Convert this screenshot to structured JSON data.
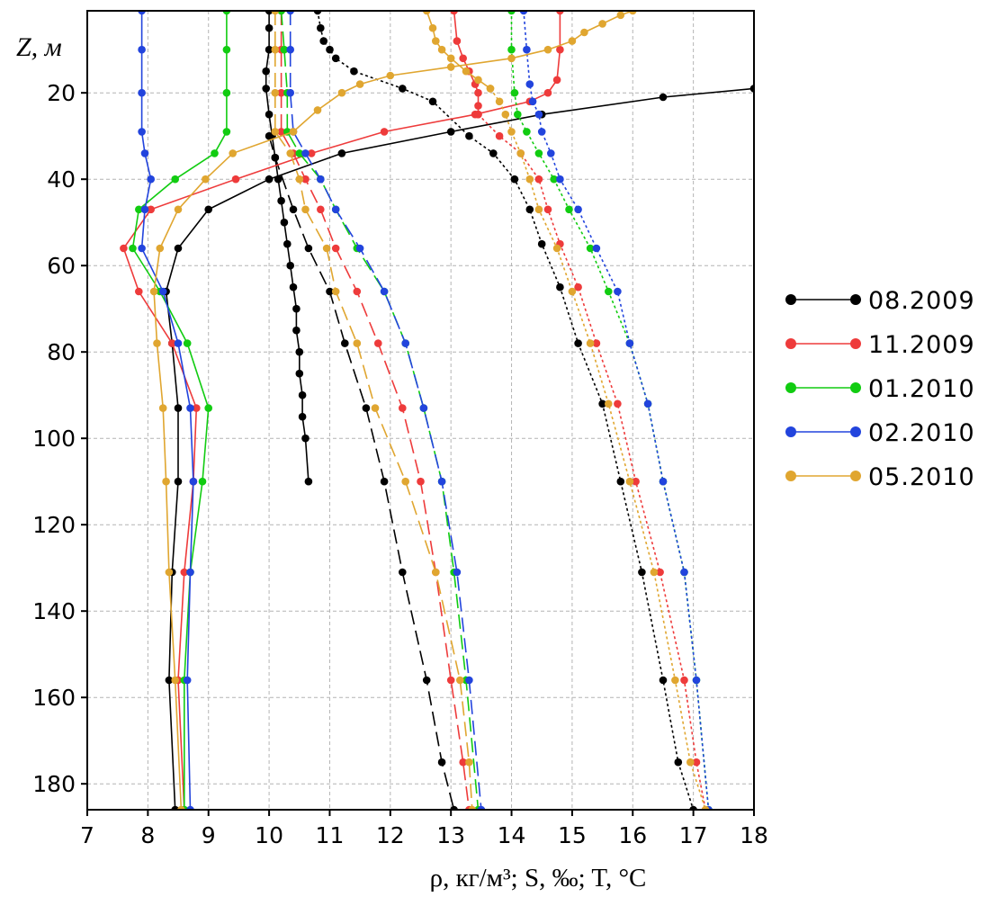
{
  "chart_data": {
    "type": "line",
    "xlabel": "ρ, кг/м³; S, ‰; T, °C",
    "ylabel": "Z, м",
    "xlim": [
      7,
      18
    ],
    "ylim": [
      186,
      1
    ],
    "x_ticks": [
      7,
      8,
      9,
      10,
      11,
      12,
      13,
      14,
      15,
      16,
      17,
      18
    ],
    "y_ticks": [
      20,
      40,
      60,
      80,
      100,
      120,
      140,
      160,
      180
    ],
    "grid": true,
    "legend_position": "right",
    "legend": [
      "08.2009",
      "11.2009",
      "01.2010",
      "02.2010",
      "05.2010"
    ],
    "colors": {
      "08.2009": "#000000",
      "11.2009": "#ee3b3b",
      "01.2010": "#11cc11",
      "02.2010": "#2244dd",
      "05.2010": "#e0a630"
    },
    "series": [
      {
        "name": "08.2009",
        "variable": "T",
        "dash": "solid",
        "points": [
          [
            10.0,
            1
          ],
          [
            10.0,
            5
          ],
          [
            10.0,
            10
          ],
          [
            9.95,
            15
          ],
          [
            9.95,
            19
          ],
          [
            10.0,
            25
          ],
          [
            10.05,
            30
          ],
          [
            10.1,
            35
          ],
          [
            10.15,
            40
          ],
          [
            10.2,
            45
          ],
          [
            10.25,
            50
          ],
          [
            10.3,
            55
          ],
          [
            10.35,
            60
          ],
          [
            10.4,
            65
          ],
          [
            10.45,
            70
          ],
          [
            10.45,
            75
          ],
          [
            10.5,
            80
          ],
          [
            10.5,
            85
          ],
          [
            10.55,
            90
          ],
          [
            10.55,
            95
          ],
          [
            10.6,
            100
          ],
          [
            10.65,
            110
          ]
        ]
      },
      {
        "name": "08.2009",
        "variable": "S",
        "dash": "dotted",
        "points": [
          [
            10.8,
            1
          ],
          [
            10.85,
            5
          ],
          [
            10.9,
            8
          ],
          [
            11.0,
            10
          ],
          [
            11.1,
            12
          ],
          [
            11.4,
            15
          ],
          [
            12.2,
            19
          ],
          [
            12.7,
            22
          ],
          [
            13.3,
            30
          ],
          [
            13.7,
            34
          ],
          [
            14.05,
            40
          ],
          [
            14.3,
            47
          ],
          [
            14.5,
            55
          ],
          [
            14.8,
            65
          ],
          [
            15.1,
            78
          ],
          [
            15.5,
            92
          ],
          [
            15.8,
            110
          ],
          [
            16.15,
            131
          ],
          [
            16.5,
            156
          ],
          [
            16.75,
            175
          ],
          [
            17.0,
            186
          ]
        ]
      },
      {
        "name": "08.2009",
        "variable": "ρ",
        "dash": "dashed",
        "points": [
          [
            10.0,
            30
          ],
          [
            10.1,
            35
          ],
          [
            10.4,
            47
          ],
          [
            10.65,
            56
          ],
          [
            11.0,
            66
          ],
          [
            11.25,
            78
          ],
          [
            11.6,
            93
          ],
          [
            11.9,
            110
          ],
          [
            12.2,
            131
          ],
          [
            12.6,
            156
          ],
          [
            12.85,
            175
          ],
          [
            13.05,
            186
          ]
        ]
      },
      {
        "name": "08.2009",
        "variable": "T",
        "dash": "solid",
        "points": [
          [
            18.0,
            19
          ],
          [
            16.5,
            21
          ],
          [
            14.5,
            25
          ],
          [
            13.0,
            29
          ],
          [
            11.2,
            34
          ],
          [
            10.0,
            40
          ],
          [
            9.0,
            47
          ],
          [
            8.5,
            56
          ],
          [
            8.3,
            66
          ],
          [
            8.4,
            78
          ],
          [
            8.5,
            93
          ],
          [
            8.5,
            110
          ],
          [
            8.4,
            131
          ],
          [
            8.35,
            156
          ],
          [
            8.45,
            186
          ]
        ]
      },
      {
        "name": "11.2009",
        "variable": "T",
        "dash": "solid",
        "points": [
          [
            14.8,
            1
          ],
          [
            14.8,
            10
          ],
          [
            14.75,
            17
          ],
          [
            14.6,
            20
          ],
          [
            14.3,
            22
          ],
          [
            13.4,
            25
          ],
          [
            11.9,
            29
          ],
          [
            10.7,
            34
          ],
          [
            9.45,
            40
          ],
          [
            8.05,
            47
          ],
          [
            7.6,
            56
          ],
          [
            7.85,
            66
          ],
          [
            8.4,
            78
          ],
          [
            8.8,
            93
          ],
          [
            8.75,
            110
          ],
          [
            8.6,
            131
          ],
          [
            8.5,
            156
          ],
          [
            8.6,
            186
          ]
        ]
      },
      {
        "name": "11.2009",
        "variable": "S",
        "dash": "solid",
        "points": [
          [
            13.05,
            1
          ],
          [
            13.1,
            8
          ],
          [
            13.2,
            12
          ],
          [
            13.3,
            15
          ],
          [
            13.4,
            18
          ],
          [
            13.45,
            20
          ],
          [
            13.45,
            23
          ],
          [
            13.45,
            25
          ]
        ]
      },
      {
        "name": "11.2009",
        "variable": "S",
        "dash": "dotted",
        "points": [
          [
            13.45,
            25
          ],
          [
            13.8,
            30
          ],
          [
            14.15,
            34
          ],
          [
            14.45,
            40
          ],
          [
            14.6,
            47
          ],
          [
            14.8,
            55
          ],
          [
            15.1,
            65
          ],
          [
            15.4,
            78
          ],
          [
            15.75,
            92
          ],
          [
            16.05,
            110
          ],
          [
            16.45,
            131
          ],
          [
            16.85,
            156
          ],
          [
            17.05,
            175
          ],
          [
            17.2,
            186
          ]
        ]
      },
      {
        "name": "11.2009",
        "variable": "ρ",
        "dash": "dashed",
        "points": [
          [
            10.2,
            1
          ],
          [
            10.2,
            10
          ],
          [
            10.2,
            20
          ],
          [
            10.2,
            29
          ],
          [
            10.4,
            34
          ],
          [
            10.6,
            40
          ],
          [
            10.85,
            47
          ],
          [
            11.1,
            56
          ],
          [
            11.45,
            66
          ],
          [
            11.8,
            78
          ],
          [
            12.2,
            93
          ],
          [
            12.5,
            110
          ],
          [
            12.75,
            131
          ],
          [
            13.0,
            156
          ],
          [
            13.2,
            175
          ],
          [
            13.3,
            186
          ]
        ]
      },
      {
        "name": "01.2010",
        "variable": "T",
        "dash": "solid",
        "points": [
          [
            9.3,
            1
          ],
          [
            9.3,
            10
          ],
          [
            9.3,
            20
          ],
          [
            9.3,
            29
          ],
          [
            9.1,
            34
          ],
          [
            8.45,
            40
          ],
          [
            7.85,
            47
          ],
          [
            7.75,
            56
          ],
          [
            8.2,
            66
          ],
          [
            8.65,
            78
          ],
          [
            9.0,
            93
          ],
          [
            8.9,
            110
          ],
          [
            8.7,
            131
          ],
          [
            8.6,
            156
          ],
          [
            8.6,
            186
          ]
        ]
      },
      {
        "name": "01.2010",
        "variable": "S",
        "dash": "dotted",
        "points": [
          [
            14.0,
            1
          ],
          [
            14.0,
            10
          ],
          [
            14.05,
            20
          ],
          [
            14.1,
            25
          ],
          [
            14.25,
            29
          ],
          [
            14.45,
            34
          ],
          [
            14.7,
            40
          ],
          [
            14.95,
            47
          ],
          [
            15.3,
            56
          ],
          [
            15.6,
            66
          ],
          [
            15.95,
            78
          ],
          [
            16.25,
            92
          ],
          [
            16.5,
            110
          ],
          [
            16.85,
            131
          ],
          [
            17.05,
            156
          ],
          [
            17.25,
            186
          ]
        ]
      },
      {
        "name": "01.2010",
        "variable": "ρ",
        "dash": "dashed",
        "points": [
          [
            10.2,
            1
          ],
          [
            10.25,
            10
          ],
          [
            10.3,
            20
          ],
          [
            10.3,
            29
          ],
          [
            10.5,
            34
          ],
          [
            10.85,
            40
          ],
          [
            11.1,
            47
          ],
          [
            11.45,
            56
          ],
          [
            11.9,
            66
          ],
          [
            12.25,
            78
          ],
          [
            12.55,
            93
          ],
          [
            12.85,
            110
          ],
          [
            13.05,
            131
          ],
          [
            13.25,
            156
          ],
          [
            13.45,
            186
          ]
        ]
      },
      {
        "name": "02.2010",
        "variable": "T",
        "dash": "solid",
        "points": [
          [
            7.9,
            1
          ],
          [
            7.9,
            10
          ],
          [
            7.9,
            20
          ],
          [
            7.9,
            29
          ],
          [
            7.95,
            34
          ],
          [
            8.05,
            40
          ],
          [
            7.95,
            47
          ],
          [
            7.9,
            56
          ],
          [
            8.25,
            66
          ],
          [
            8.5,
            78
          ],
          [
            8.7,
            93
          ],
          [
            8.75,
            110
          ],
          [
            8.7,
            131
          ],
          [
            8.65,
            156
          ],
          [
            8.7,
            186
          ]
        ]
      },
      {
        "name": "02.2010",
        "variable": "S",
        "dash": "dotted",
        "points": [
          [
            14.2,
            1
          ],
          [
            14.25,
            10
          ],
          [
            14.3,
            18
          ],
          [
            14.35,
            22
          ],
          [
            14.45,
            25
          ],
          [
            14.5,
            29
          ],
          [
            14.65,
            34
          ],
          [
            14.8,
            40
          ],
          [
            15.1,
            47
          ],
          [
            15.4,
            56
          ],
          [
            15.75,
            66
          ],
          [
            15.95,
            78
          ],
          [
            16.25,
            92
          ],
          [
            16.5,
            110
          ],
          [
            16.85,
            131
          ],
          [
            17.05,
            156
          ],
          [
            17.25,
            186
          ]
        ]
      },
      {
        "name": "02.2010",
        "variable": "ρ",
        "dash": "dashed",
        "points": [
          [
            10.35,
            1
          ],
          [
            10.35,
            10
          ],
          [
            10.35,
            20
          ],
          [
            10.4,
            29
          ],
          [
            10.6,
            34
          ],
          [
            10.85,
            40
          ],
          [
            11.1,
            47
          ],
          [
            11.5,
            56
          ],
          [
            11.9,
            66
          ],
          [
            12.25,
            78
          ],
          [
            12.55,
            93
          ],
          [
            12.85,
            110
          ],
          [
            13.1,
            131
          ],
          [
            13.3,
            156
          ],
          [
            13.5,
            186
          ]
        ]
      },
      {
        "name": "05.2010",
        "variable": "T",
        "dash": "solid",
        "points": [
          [
            16.0,
            1
          ],
          [
            15.8,
            2
          ],
          [
            15.5,
            4
          ],
          [
            15.2,
            6
          ],
          [
            15.0,
            8
          ],
          [
            14.6,
            10
          ],
          [
            14.0,
            12
          ],
          [
            13.0,
            14
          ],
          [
            12.0,
            16
          ],
          [
            11.5,
            18
          ],
          [
            11.2,
            20
          ],
          [
            10.8,
            24
          ],
          [
            10.4,
            29
          ],
          [
            9.4,
            34
          ],
          [
            8.95,
            40
          ],
          [
            8.5,
            47
          ],
          [
            8.2,
            56
          ],
          [
            8.1,
            66
          ],
          [
            8.15,
            78
          ],
          [
            8.25,
            93
          ],
          [
            8.3,
            110
          ],
          [
            8.35,
            131
          ],
          [
            8.45,
            156
          ],
          [
            8.55,
            186
          ]
        ]
      },
      {
        "name": "05.2010",
        "variable": "S",
        "dash": "solid",
        "points": [
          [
            12.6,
            1
          ],
          [
            12.7,
            5
          ],
          [
            12.75,
            8
          ],
          [
            12.85,
            10
          ],
          [
            13.0,
            12
          ],
          [
            13.25,
            15
          ],
          [
            13.45,
            17
          ],
          [
            13.65,
            19
          ]
        ]
      },
      {
        "name": "05.2010",
        "variable": "S",
        "dash": "dotted",
        "points": [
          [
            13.65,
            19
          ],
          [
            13.8,
            22
          ],
          [
            13.9,
            25
          ],
          [
            14.0,
            29
          ],
          [
            14.15,
            34
          ],
          [
            14.3,
            40
          ],
          [
            14.45,
            47
          ],
          [
            14.75,
            56
          ],
          [
            15.0,
            66
          ],
          [
            15.3,
            78
          ],
          [
            15.6,
            92
          ],
          [
            15.95,
            110
          ],
          [
            16.35,
            131
          ],
          [
            16.7,
            156
          ],
          [
            16.95,
            175
          ],
          [
            17.2,
            186
          ]
        ]
      },
      {
        "name": "05.2010",
        "variable": "ρ",
        "dash": "dashed",
        "points": [
          [
            10.1,
            1
          ],
          [
            10.1,
            10
          ],
          [
            10.1,
            20
          ],
          [
            10.1,
            29
          ],
          [
            10.35,
            34
          ],
          [
            10.5,
            40
          ],
          [
            10.6,
            47
          ],
          [
            10.95,
            56
          ],
          [
            11.1,
            66
          ],
          [
            11.45,
            78
          ],
          [
            11.75,
            93
          ],
          [
            12.25,
            110
          ],
          [
            12.75,
            131
          ],
          [
            13.15,
            156
          ],
          [
            13.3,
            175
          ],
          [
            13.35,
            186
          ]
        ]
      }
    ]
  }
}
